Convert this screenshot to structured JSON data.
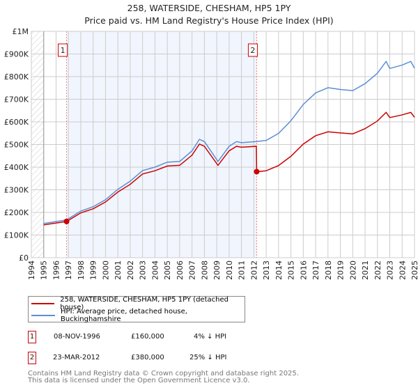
{
  "chart_data": {
    "type": "line",
    "title": "258, WATERSIDE, CHESHAM, HP5 1PY",
    "subtitle": "Price paid vs. HM Land Registry's House Price Index (HPI)",
    "xlim": [
      1994,
      2025
    ],
    "ylim": [
      0,
      1000000
    ],
    "y_ticks": [
      {
        "v": 0,
        "label": "£0"
      },
      {
        "v": 100000,
        "label": "£100K"
      },
      {
        "v": 200000,
        "label": "£200K"
      },
      {
        "v": 300000,
        "label": "£300K"
      },
      {
        "v": 400000,
        "label": "£400K"
      },
      {
        "v": 500000,
        "label": "£500K"
      },
      {
        "v": 600000,
        "label": "£600K"
      },
      {
        "v": 700000,
        "label": "£700K"
      },
      {
        "v": 800000,
        "label": "£800K"
      },
      {
        "v": 900000,
        "label": "£900K"
      },
      {
        "v": 1000000,
        "label": "£1M"
      }
    ],
    "x_ticks": [
      "1994",
      "1995",
      "1996",
      "1997",
      "1998",
      "1999",
      "2000",
      "2001",
      "2002",
      "2003",
      "2004",
      "2005",
      "2006",
      "2007",
      "2008",
      "2009",
      "2010",
      "2011",
      "2012",
      "2013",
      "2014",
      "2015",
      "2016",
      "2017",
      "2018",
      "2019",
      "2020",
      "2021",
      "2022",
      "2023",
      "2024",
      "2025"
    ],
    "grid": true,
    "series": [
      {
        "name": "258, WATERSIDE, CHESHAM, HP5 1PY (detached house)",
        "color": "#cc0000",
        "x": [
          1995,
          1996.85,
          1998,
          1999,
          2000,
          2001,
          2002,
          2003,
          2004,
          2005,
          2006,
          2007,
          2007.6,
          2008,
          2009.1,
          2010,
          2010.6,
          2011,
          2012.2,
          2012.23,
          2013,
          2014,
          2015,
          2016,
          2017,
          2018,
          2019,
          2020,
          2021,
          2022,
          2022.7,
          2023,
          2024,
          2024.7,
          2025
        ],
        "y": [
          145000,
          160000,
          198000,
          216000,
          246000,
          290000,
          324000,
          370000,
          384000,
          405000,
          408000,
          453000,
          502000,
          492000,
          408000,
          472000,
          492000,
          488000,
          492000,
          380000,
          384000,
          407000,
          448000,
          502000,
          539000,
          556000,
          551000,
          547000,
          570000,
          604000,
          642000,
          619000,
          631000,
          642000,
          620000
        ]
      },
      {
        "name": "HPI: Average price, detached house, Buckinghamshire",
        "color": "#5b8ed6",
        "x": [
          1995,
          1996.85,
          1998,
          1999,
          2000,
          2001,
          2002,
          2003,
          2004,
          2005,
          2006,
          2007,
          2007.6,
          2008,
          2009.1,
          2010,
          2010.6,
          2011,
          2012.2,
          2013,
          2014,
          2015,
          2016,
          2017,
          2018,
          2019,
          2020,
          2021,
          2022,
          2022.7,
          2023,
          2024,
          2024.7,
          2025
        ],
        "y": [
          151000,
          167000,
          206000,
          225000,
          256000,
          302000,
          338000,
          385000,
          400000,
          422000,
          425000,
          472000,
          523000,
          513000,
          425000,
          492000,
          513000,
          508000,
          513000,
          518000,
          549000,
          605000,
          677000,
          728000,
          751000,
          743000,
          738000,
          769000,
          815000,
          867000,
          836000,
          851000,
          867000,
          837000
        ]
      }
    ],
    "sales": [
      {
        "id": "1",
        "x": 1996.85,
        "y": 160000
      },
      {
        "id": "2",
        "x": 2012.23,
        "y": 380000
      }
    ],
    "legend_placement": "bottom"
  },
  "table": [
    {
      "id": "1",
      "date": "08-NOV-1996",
      "price": "£160,000",
      "hpi": "4% ↓ HPI"
    },
    {
      "id": "2",
      "date": "23-MAR-2012",
      "price": "£380,000",
      "hpi": "25% ↓ HPI"
    }
  ],
  "footer": [
    "Contains HM Land Registry data © Crown copyright and database right 2025.",
    "This data is licensed under the Open Government Licence v3.0."
  ]
}
